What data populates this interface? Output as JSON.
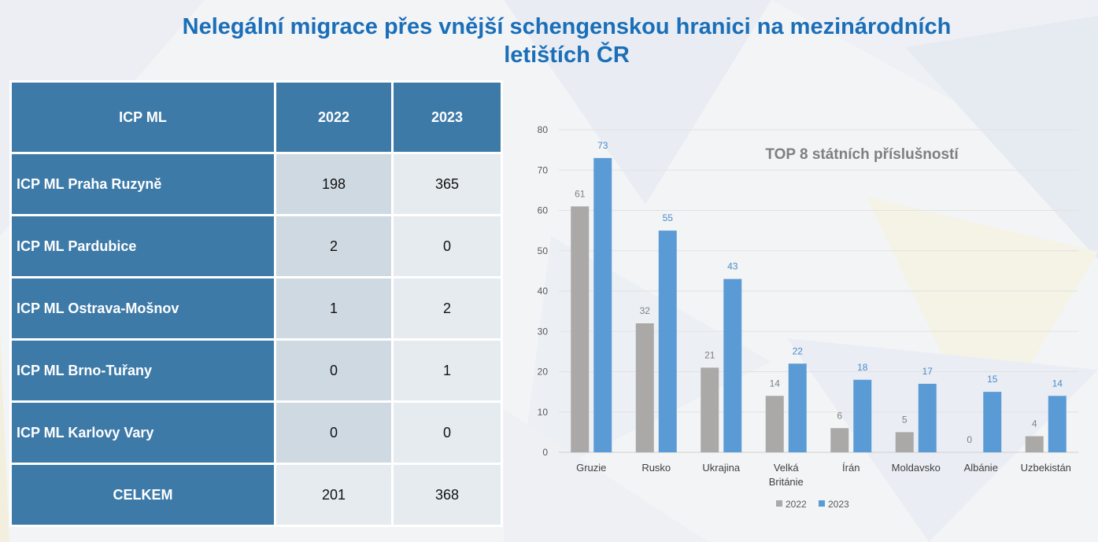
{
  "page": {
    "title_line1": "Nelegální migrace přes vnější schengenskou hranici na mezinárodních",
    "title_line2": "letištích ČR"
  },
  "table": {
    "headers": [
      "ICP ML",
      "2022",
      "2023"
    ],
    "rows": [
      {
        "label": "ICP ML Praha Ruzyně",
        "y2022": "198",
        "y2023": "365"
      },
      {
        "label": "ICP ML Pardubice",
        "y2022": "2",
        "y2023": "0"
      },
      {
        "label": "ICP ML Ostrava-Mošnov",
        "y2022": "1",
        "y2023": "2"
      },
      {
        "label": "ICP ML Brno-Tuřany",
        "y2022": "0",
        "y2023": "1"
      },
      {
        "label": "ICP ML Karlovy Vary",
        "y2022": "0",
        "y2023": "0"
      }
    ],
    "total": {
      "label": "CELKEM",
      "y2022": "201",
      "y2023": "368"
    }
  },
  "chart_data": {
    "type": "bar",
    "title": "TOP 8 státních příslušností",
    "categories": [
      "Gruzie",
      "Rusko",
      "Ukrajina",
      "Velká Británie",
      "Írán",
      "Moldavsko",
      "Albánie",
      "Uzbekistán"
    ],
    "category_lines": [
      [
        "Gruzie"
      ],
      [
        "Rusko"
      ],
      [
        "Ukrajina"
      ],
      [
        "Velká",
        "Británie"
      ],
      [
        "Írán"
      ],
      [
        "Moldavsko"
      ],
      [
        "Albánie"
      ],
      [
        "Uzbekistán"
      ]
    ],
    "series": [
      {
        "name": "2022",
        "color": "#aba8a8",
        "label_color": "#7f7f7f",
        "values": [
          61,
          32,
          21,
          14,
          6,
          5,
          0,
          4
        ]
      },
      {
        "name": "2023",
        "color": "#5b9bd5",
        "label_color": "#4a8ac8",
        "values": [
          73,
          55,
          43,
          22,
          18,
          17,
          15,
          14
        ]
      }
    ],
    "ylim": [
      0,
      80
    ],
    "yticks": [
      0,
      10,
      20,
      30,
      40,
      50,
      60,
      70,
      80
    ],
    "grid": true,
    "legend": "bottom"
  }
}
